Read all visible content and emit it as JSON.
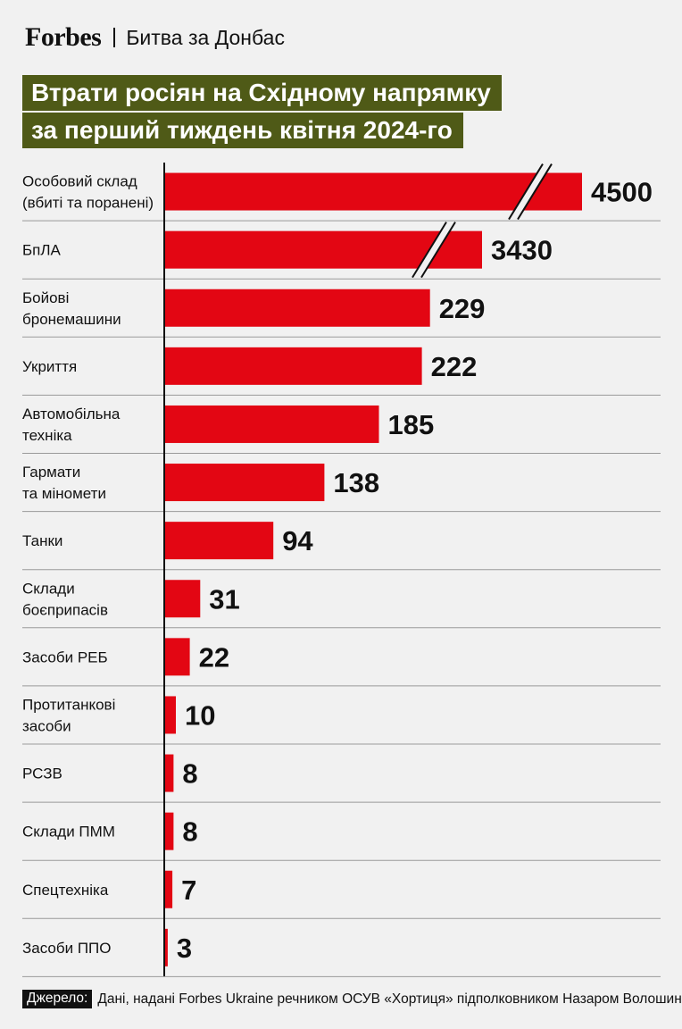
{
  "header": {
    "logo": "Forbes",
    "section": "Битва за Донбас"
  },
  "title": {
    "line1": "Втрати росіян на Східному напрямку",
    "line2": "за перший тиждень квітня 2024-го"
  },
  "colors": {
    "bar": "#e30613",
    "title_bg": "#4f5a17",
    "background": "#f1f1f1"
  },
  "chart_data": {
    "type": "bar",
    "orientation": "horizontal",
    "axis_broken_bars": [
      "Особовий склад (вбиті та поранені)",
      "БпЛА"
    ],
    "categories": [
      [
        "Особовий склад",
        "(вбиті та поранені)"
      ],
      [
        "БпЛА"
      ],
      [
        "Бойові",
        "бронемашини"
      ],
      [
        "Укриття"
      ],
      [
        "Автомобільна",
        "техніка"
      ],
      [
        "Гармати",
        "та міномети"
      ],
      [
        "Танки"
      ],
      [
        "Склади",
        "боєприпасів"
      ],
      [
        "Засоби РЕБ"
      ],
      [
        "Протитанкові",
        "засоби"
      ],
      [
        "РСЗВ"
      ],
      [
        "Склади ПММ"
      ],
      [
        "Спецтехніка"
      ],
      [
        "Засоби ППО"
      ]
    ],
    "values": [
      4500,
      3430,
      229,
      222,
      185,
      138,
      94,
      31,
      22,
      10,
      8,
      8,
      7,
      3
    ],
    "value_labels": [
      "4500",
      "3430",
      "229",
      "222",
      "185",
      "138",
      "94",
      "31",
      "22",
      "10",
      "8",
      "8",
      "7",
      "3"
    ],
    "grid": "row separators"
  },
  "footer": {
    "source_label": "Джерело:",
    "source_text": "Дані, надані Forbes Ukraine речником ОСУВ «Хортиця» підполковником Назаром Волошиним"
  }
}
